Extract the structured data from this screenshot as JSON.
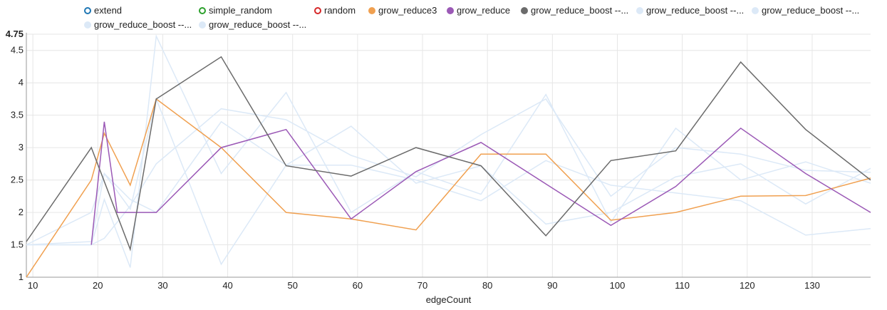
{
  "chart_data": {
    "type": "line",
    "title": "",
    "xlabel": "edgeCount",
    "ylabel": "",
    "xlim": [
      9,
      139
    ],
    "ylim": [
      1,
      4.75
    ],
    "x_ticks": [
      10,
      20,
      30,
      40,
      50,
      60,
      70,
      80,
      90,
      100,
      110,
      120,
      130
    ],
    "y_ticks": [
      1,
      1.5,
      2,
      2.5,
      3,
      3.5,
      4,
      4.5,
      4.75
    ],
    "y_tick_labels": [
      "1",
      "1.5",
      "2",
      "2.5",
      "3",
      "3.5",
      "4",
      "4.5",
      "4.75"
    ],
    "grid": true,
    "legend_position": "top",
    "series": [
      {
        "name": "extend",
        "color": "#1f77b4",
        "style": "hollow",
        "points": []
      },
      {
        "name": "simple_random",
        "color": "#2ca02c",
        "style": "hollow",
        "points": []
      },
      {
        "name": "random",
        "color": "#d62728",
        "style": "hollow",
        "points": []
      },
      {
        "name": "grow_reduce3",
        "color": "#f0a050",
        "style": "filled",
        "points": [
          [
            9,
            1.0
          ],
          [
            19,
            2.5
          ],
          [
            21,
            3.22
          ],
          [
            25,
            2.42
          ],
          [
            29,
            3.75
          ],
          [
            39,
            3.0
          ],
          [
            49,
            2.0
          ],
          [
            59,
            1.9
          ],
          [
            69,
            1.73
          ],
          [
            79,
            2.9
          ],
          [
            89,
            2.9
          ],
          [
            99,
            1.88
          ],
          [
            109,
            2.0
          ],
          [
            119,
            2.25
          ],
          [
            129,
            2.26
          ],
          [
            139,
            2.53
          ]
        ]
      },
      {
        "name": "grow_reduce",
        "color": "#9b59b6",
        "style": "filled",
        "points": [
          [
            19,
            1.5
          ],
          [
            21,
            3.4
          ],
          [
            23,
            2.0
          ],
          [
            29,
            2.0
          ],
          [
            39,
            3.0
          ],
          [
            49,
            3.28
          ],
          [
            59,
            1.9
          ],
          [
            69,
            2.63
          ],
          [
            79,
            3.08
          ],
          [
            89,
            2.44
          ],
          [
            99,
            1.8
          ],
          [
            109,
            2.4
          ],
          [
            119,
            3.3
          ],
          [
            129,
            2.6
          ],
          [
            139,
            2.0
          ]
        ]
      },
      {
        "name": "grow_reduce_boost --...",
        "color": "#6b6b6b",
        "style": "filled",
        "points": [
          [
            9,
            1.55
          ],
          [
            19,
            3.0
          ],
          [
            25,
            1.43
          ],
          [
            29,
            3.75
          ],
          [
            39,
            4.4
          ],
          [
            49,
            2.72
          ],
          [
            59,
            2.56
          ],
          [
            69,
            3.0
          ],
          [
            79,
            2.72
          ],
          [
            89,
            1.64
          ],
          [
            99,
            2.8
          ],
          [
            109,
            2.95
          ],
          [
            119,
            4.32
          ],
          [
            129,
            3.28
          ],
          [
            139,
            2.5
          ]
        ]
      },
      {
        "name": "grow_reduce_boost --...",
        "color": "#dce9f7",
        "style": "filled",
        "points": [
          [
            9,
            1.5
          ],
          [
            19,
            1.5
          ],
          [
            21,
            2.2
          ],
          [
            25,
            1.15
          ],
          [
            29,
            4.72
          ],
          [
            39,
            2.6
          ],
          [
            49,
            3.85
          ],
          [
            59,
            2.0
          ],
          [
            69,
            2.63
          ],
          [
            79,
            2.28
          ],
          [
            89,
            3.82
          ],
          [
            99,
            1.85
          ],
          [
            109,
            3.3
          ],
          [
            119,
            2.5
          ],
          [
            129,
            2.78
          ],
          [
            139,
            2.45
          ]
        ]
      },
      {
        "name": "grow_reduce_boost --...",
        "color": "#dce9f7",
        "style": "filled",
        "points": [
          [
            9,
            1.5
          ],
          [
            19,
            2.0
          ],
          [
            21,
            2.6
          ],
          [
            25,
            2.2
          ],
          [
            29,
            2.0
          ],
          [
            39,
            3.4
          ],
          [
            49,
            2.73
          ],
          [
            59,
            3.33
          ],
          [
            69,
            2.45
          ],
          [
            79,
            2.72
          ],
          [
            89,
            1.82
          ],
          [
            99,
            2.0
          ],
          [
            109,
            2.55
          ],
          [
            119,
            2.75
          ],
          [
            129,
            2.13
          ],
          [
            139,
            2.68
          ]
        ]
      },
      {
        "name": "grow_reduce_boost --...",
        "color": "#dce9f7",
        "style": "filled",
        "points": [
          [
            9,
            1.5
          ],
          [
            19,
            1.55
          ],
          [
            21,
            2.6
          ],
          [
            25,
            2.05
          ],
          [
            29,
            3.75
          ],
          [
            39,
            1.2
          ],
          [
            49,
            2.73
          ],
          [
            59,
            2.73
          ],
          [
            69,
            2.5
          ],
          [
            79,
            2.18
          ],
          [
            89,
            2.8
          ],
          [
            99,
            2.42
          ],
          [
            109,
            2.3
          ],
          [
            119,
            2.18
          ],
          [
            129,
            1.65
          ],
          [
            139,
            1.75
          ]
        ]
      },
      {
        "name": "grow_reduce_boost --...",
        "color": "#dce9f7",
        "style": "filled",
        "points": [
          [
            9,
            1.5
          ],
          [
            19,
            1.5
          ],
          [
            21,
            1.6
          ],
          [
            25,
            2.1
          ],
          [
            29,
            2.75
          ],
          [
            39,
            3.6
          ],
          [
            49,
            3.43
          ],
          [
            59,
            2.88
          ],
          [
            69,
            2.55
          ],
          [
            79,
            3.2
          ],
          [
            89,
            3.75
          ],
          [
            99,
            2.25
          ],
          [
            109,
            3.0
          ],
          [
            119,
            2.9
          ],
          [
            129,
            2.65
          ],
          [
            139,
            2.62
          ]
        ]
      }
    ]
  }
}
